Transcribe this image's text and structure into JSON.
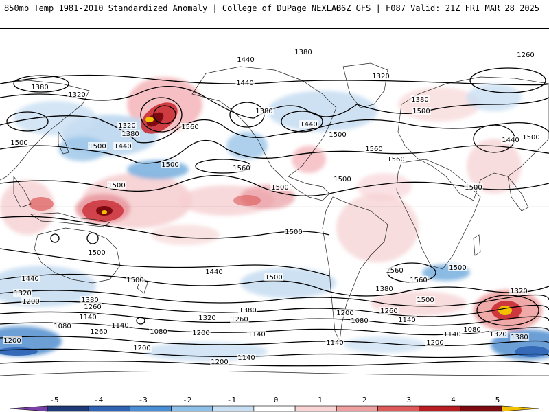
{
  "header": {
    "left": "850mb Temp 1981-2010 Standardized Anomaly | College of DuPage NEXLAB",
    "right": "06Z GFS | F087 Valid: 21Z FRI MAR 28 2025"
  },
  "colorbar": {
    "tick_labels": [
      "-5",
      "-4",
      "-3",
      "-2",
      "-1",
      "0",
      "1",
      "2",
      "3",
      "4",
      "5"
    ],
    "colors": [
      "#7b3fa8",
      "#1f3a78",
      "#2f64b5",
      "#4a8fd6",
      "#8ec0e8",
      "#c8def2",
      "#ffffff",
      "#f8d4d4",
      "#eea0a0",
      "#dc5a5a",
      "#b81d22",
      "#7d0a10",
      "#f2c200"
    ]
  },
  "contour_labels": [
    "1380",
    "1440",
    "1260",
    "1380",
    "1320",
    "1320",
    "1500",
    "1380",
    "1440",
    "1380",
    "1320",
    "1500",
    "1560",
    "1500",
    "1440",
    "1500",
    "1380",
    "1440",
    "1560",
    "1560",
    "1500",
    "1500",
    "1440",
    "1500",
    "1500",
    "1560",
    "1500",
    "1500",
    "1500",
    "1500",
    "1500",
    "1500",
    "1440",
    "1500",
    "1440",
    "1380",
    "1560",
    "1320",
    "1500",
    "1560",
    "1320",
    "1200",
    "1380",
    "1260",
    "1140",
    "1140",
    "1080",
    "1260",
    "1080",
    "1200",
    "1200",
    "1320",
    "1260",
    "1380",
    "1200",
    "1260",
    "1080",
    "1140",
    "1140",
    "1140",
    "1140",
    "1200",
    "1080",
    "1320",
    "1380",
    "1200",
    "1200",
    "1140"
  ]
}
